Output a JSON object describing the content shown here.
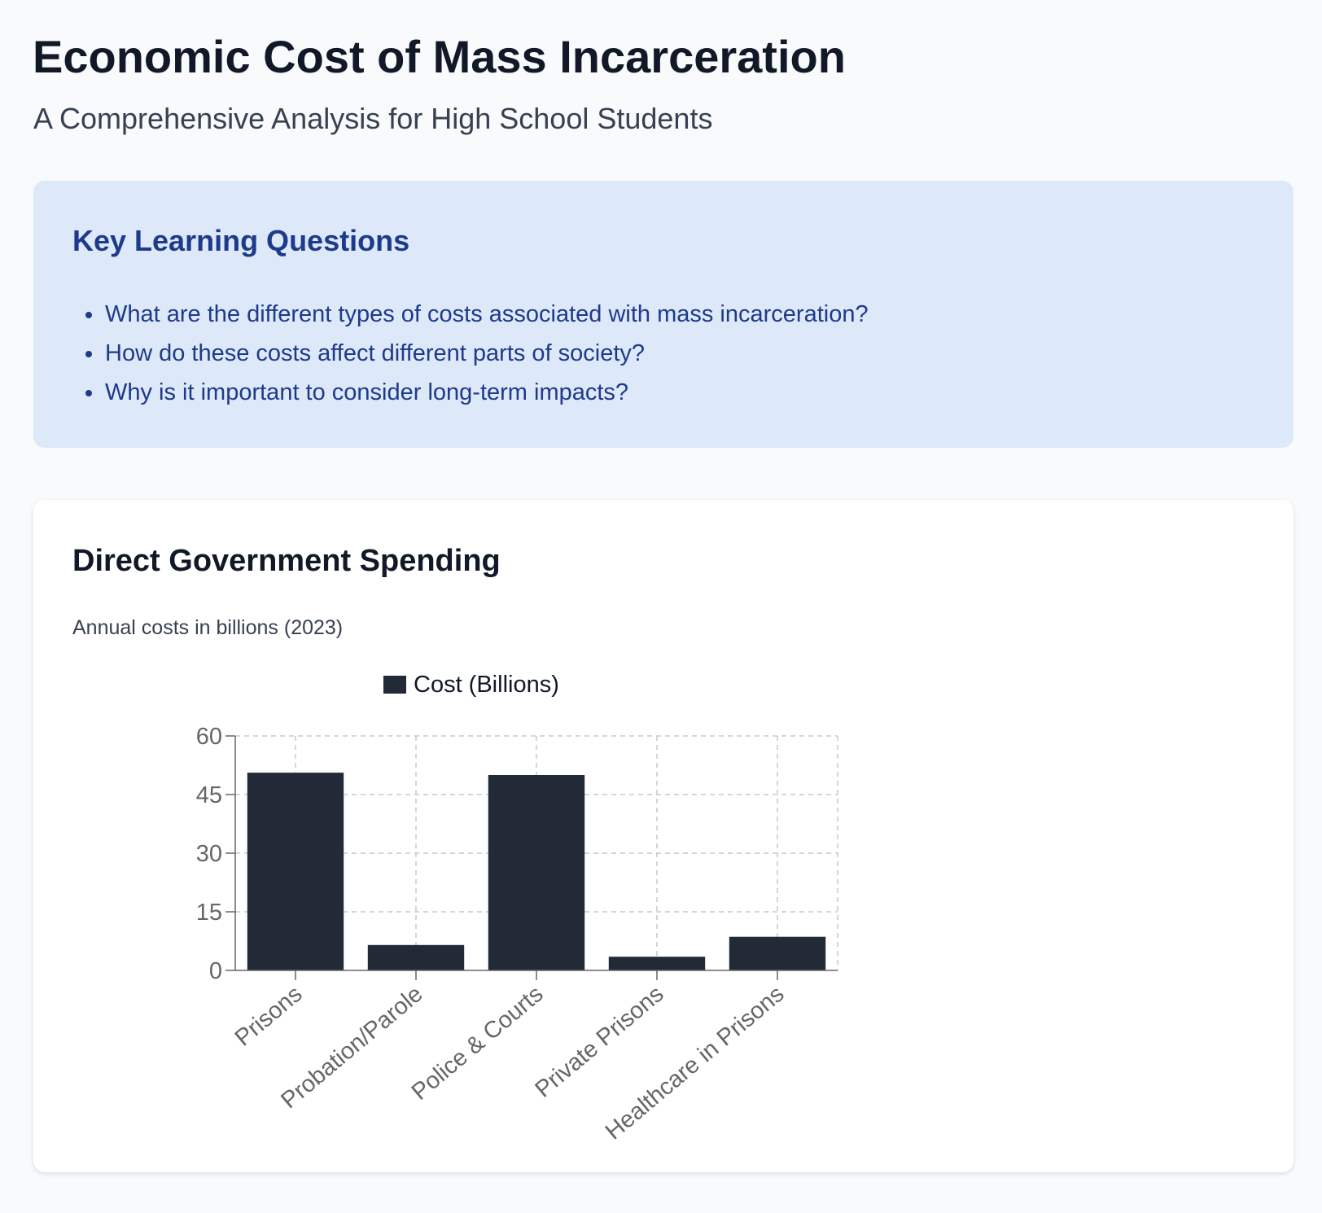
{
  "header": {
    "title": "Economic Cost of Mass Incarceration",
    "subtitle": "A Comprehensive Analysis for High School Students"
  },
  "questions": {
    "title": "Key Learning Questions",
    "items": [
      "What are the different types of costs associated with mass incarceration?",
      "How do these costs affect different parts of society?",
      "Why is it important to consider long-term impacts?"
    ]
  },
  "chart_section": {
    "title": "Direct Government Spending",
    "subtitle": "Annual costs in billions (2023)"
  },
  "colors": {
    "bar": "#222a38",
    "grid": "#c8c8c8",
    "tick_text": "#666666",
    "axis": "#666666"
  },
  "chart_data": {
    "type": "bar",
    "categories": [
      "Prisons",
      "Probation/Parole",
      "Police & Courts",
      "Private Prisons",
      "Healthcare in Prisons"
    ],
    "series": [
      {
        "name": "Cost (Billions)",
        "values": [
          50.6,
          6.5,
          50,
          3.5,
          8.6
        ]
      }
    ],
    "title": "",
    "xlabel": "",
    "ylabel": "",
    "ylim": [
      0,
      60
    ],
    "yticks": [
      0,
      15,
      30,
      45,
      60
    ],
    "grid": true,
    "legend": "top"
  }
}
